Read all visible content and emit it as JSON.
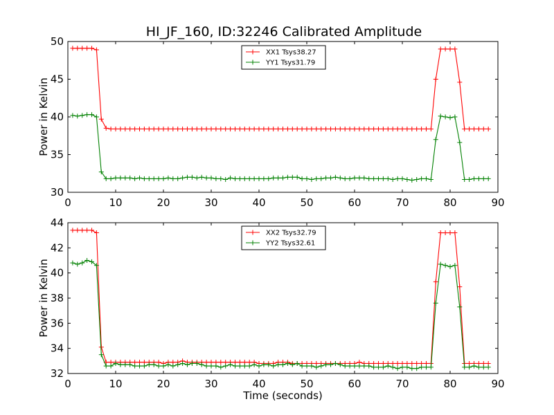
{
  "title": "HI_JF_160, ID:32246 Calibrated Amplitude",
  "colors": {
    "xx": "#ff0000",
    "yy": "#008000"
  },
  "chart_data": [
    {
      "type": "line",
      "ylabel": "Power in Kelvin",
      "xlabel": "",
      "xlim": [
        0,
        90
      ],
      "ylim": [
        30,
        50
      ],
      "xticks": [
        0,
        10,
        20,
        30,
        40,
        50,
        60,
        70,
        80,
        90
      ],
      "yticks": [
        30,
        35,
        40,
        45,
        50
      ],
      "legend_position": "top-center",
      "x": [
        1,
        2,
        3,
        4,
        5,
        6,
        7,
        8,
        9,
        10,
        11,
        12,
        13,
        14,
        15,
        16,
        17,
        18,
        19,
        20,
        21,
        22,
        23,
        24,
        25,
        26,
        27,
        28,
        29,
        30,
        31,
        32,
        33,
        34,
        35,
        36,
        37,
        38,
        39,
        40,
        41,
        42,
        43,
        44,
        45,
        46,
        47,
        48,
        49,
        50,
        51,
        52,
        53,
        54,
        55,
        56,
        57,
        58,
        59,
        60,
        61,
        62,
        63,
        64,
        65,
        66,
        67,
        68,
        69,
        70,
        71,
        72,
        73,
        74,
        75,
        76,
        77,
        78,
        79,
        80,
        81,
        82,
        83,
        84,
        85,
        86,
        87,
        88
      ],
      "series": [
        {
          "name": "XX1 Tsys38.27",
          "color_key": "xx",
          "values": [
            49.1,
            49.1,
            49.1,
            49.1,
            49.1,
            48.9,
            39.7,
            38.5,
            38.4,
            38.4,
            38.4,
            38.4,
            38.4,
            38.4,
            38.4,
            38.4,
            38.4,
            38.4,
            38.4,
            38.4,
            38.4,
            38.4,
            38.4,
            38.4,
            38.4,
            38.4,
            38.4,
            38.4,
            38.4,
            38.4,
            38.4,
            38.4,
            38.4,
            38.4,
            38.4,
            38.4,
            38.4,
            38.4,
            38.4,
            38.4,
            38.4,
            38.4,
            38.4,
            38.4,
            38.4,
            38.4,
            38.4,
            38.4,
            38.4,
            38.4,
            38.4,
            38.4,
            38.4,
            38.4,
            38.4,
            38.4,
            38.4,
            38.4,
            38.4,
            38.4,
            38.4,
            38.4,
            38.4,
            38.4,
            38.4,
            38.4,
            38.4,
            38.4,
            38.4,
            38.4,
            38.4,
            38.4,
            38.4,
            38.4,
            38.4,
            38.4,
            45.0,
            49.0,
            49.0,
            49.0,
            49.0,
            44.6,
            38.4,
            38.4,
            38.4,
            38.4,
            38.4,
            38.4
          ]
        },
        {
          "name": "YY1 Tsys31.79",
          "color_key": "yy",
          "values": [
            40.2,
            40.1,
            40.2,
            40.3,
            40.3,
            40.0,
            32.7,
            31.8,
            31.8,
            31.9,
            31.9,
            31.9,
            31.9,
            31.8,
            31.9,
            31.8,
            31.8,
            31.8,
            31.8,
            31.8,
            31.9,
            31.8,
            31.8,
            31.9,
            32.0,
            32.0,
            31.9,
            32.0,
            31.9,
            31.9,
            31.8,
            31.8,
            31.7,
            31.9,
            31.8,
            31.8,
            31.8,
            31.8,
            31.8,
            31.8,
            31.8,
            31.8,
            31.9,
            31.9,
            31.9,
            32.0,
            32.0,
            32.0,
            31.8,
            31.8,
            31.7,
            31.8,
            31.8,
            31.9,
            31.9,
            32.0,
            31.9,
            31.8,
            31.8,
            31.9,
            31.9,
            31.9,
            31.8,
            31.8,
            31.8,
            31.8,
            31.8,
            31.7,
            31.8,
            31.8,
            31.7,
            31.6,
            31.7,
            31.8,
            31.8,
            31.7,
            37.0,
            40.1,
            40.0,
            39.9,
            40.0,
            36.6,
            31.7,
            31.7,
            31.8,
            31.8,
            31.8,
            31.8
          ]
        }
      ]
    },
    {
      "type": "line",
      "ylabel": "Power in Kelvin",
      "xlabel": "Time (seconds)",
      "xlim": [
        0,
        90
      ],
      "ylim": [
        32,
        44
      ],
      "xticks": [
        0,
        10,
        20,
        30,
        40,
        50,
        60,
        70,
        80,
        90
      ],
      "yticks": [
        32,
        34,
        36,
        38,
        40,
        42,
        44
      ],
      "legend_position": "top-center",
      "x": [
        1,
        2,
        3,
        4,
        5,
        6,
        7,
        8,
        9,
        10,
        11,
        12,
        13,
        14,
        15,
        16,
        17,
        18,
        19,
        20,
        21,
        22,
        23,
        24,
        25,
        26,
        27,
        28,
        29,
        30,
        31,
        32,
        33,
        34,
        35,
        36,
        37,
        38,
        39,
        40,
        41,
        42,
        43,
        44,
        45,
        46,
        47,
        48,
        49,
        50,
        51,
        52,
        53,
        54,
        55,
        56,
        57,
        58,
        59,
        60,
        61,
        62,
        63,
        64,
        65,
        66,
        67,
        68,
        69,
        70,
        71,
        72,
        73,
        74,
        75,
        76,
        77,
        78,
        79,
        80,
        81,
        82,
        83,
        84,
        85,
        86,
        87,
        88
      ],
      "series": [
        {
          "name": "XX2 Tsys32.79",
          "color_key": "xx",
          "values": [
            43.4,
            43.4,
            43.4,
            43.4,
            43.4,
            43.2,
            34.1,
            32.9,
            32.9,
            32.9,
            32.9,
            32.9,
            32.9,
            32.9,
            32.9,
            32.9,
            32.9,
            32.9,
            32.9,
            32.8,
            32.9,
            32.9,
            32.9,
            33.0,
            32.9,
            32.9,
            32.9,
            32.9,
            32.9,
            32.9,
            32.9,
            32.9,
            32.9,
            32.9,
            32.9,
            32.9,
            32.9,
            32.9,
            32.9,
            32.8,
            32.8,
            32.8,
            32.8,
            32.9,
            32.9,
            32.9,
            32.8,
            32.8,
            32.8,
            32.8,
            32.8,
            32.8,
            32.8,
            32.8,
            32.8,
            32.8,
            32.8,
            32.8,
            32.8,
            32.8,
            32.9,
            32.8,
            32.8,
            32.8,
            32.8,
            32.8,
            32.8,
            32.8,
            32.8,
            32.8,
            32.8,
            32.8,
            32.8,
            32.8,
            32.8,
            32.8,
            39.3,
            43.2,
            43.2,
            43.2,
            43.2,
            38.9,
            32.8,
            32.8,
            32.8,
            32.8,
            32.8,
            32.8
          ]
        },
        {
          "name": "YY2 Tsys32.61",
          "color_key": "yy",
          "values": [
            40.8,
            40.7,
            40.8,
            41.0,
            40.9,
            40.6,
            33.5,
            32.6,
            32.6,
            32.8,
            32.7,
            32.7,
            32.7,
            32.6,
            32.6,
            32.6,
            32.7,
            32.7,
            32.6,
            32.6,
            32.7,
            32.6,
            32.7,
            32.8,
            32.7,
            32.8,
            32.8,
            32.7,
            32.6,
            32.6,
            32.6,
            32.5,
            32.6,
            32.7,
            32.6,
            32.6,
            32.6,
            32.6,
            32.7,
            32.6,
            32.7,
            32.7,
            32.6,
            32.7,
            32.7,
            32.8,
            32.7,
            32.8,
            32.6,
            32.6,
            32.6,
            32.5,
            32.6,
            32.7,
            32.7,
            32.8,
            32.7,
            32.6,
            32.6,
            32.6,
            32.6,
            32.6,
            32.6,
            32.5,
            32.5,
            32.5,
            32.6,
            32.5,
            32.4,
            32.5,
            32.5,
            32.4,
            32.4,
            32.5,
            32.5,
            32.5,
            37.6,
            40.7,
            40.6,
            40.5,
            40.6,
            37.3,
            32.5,
            32.5,
            32.6,
            32.5,
            32.5,
            32.5
          ]
        }
      ]
    }
  ]
}
